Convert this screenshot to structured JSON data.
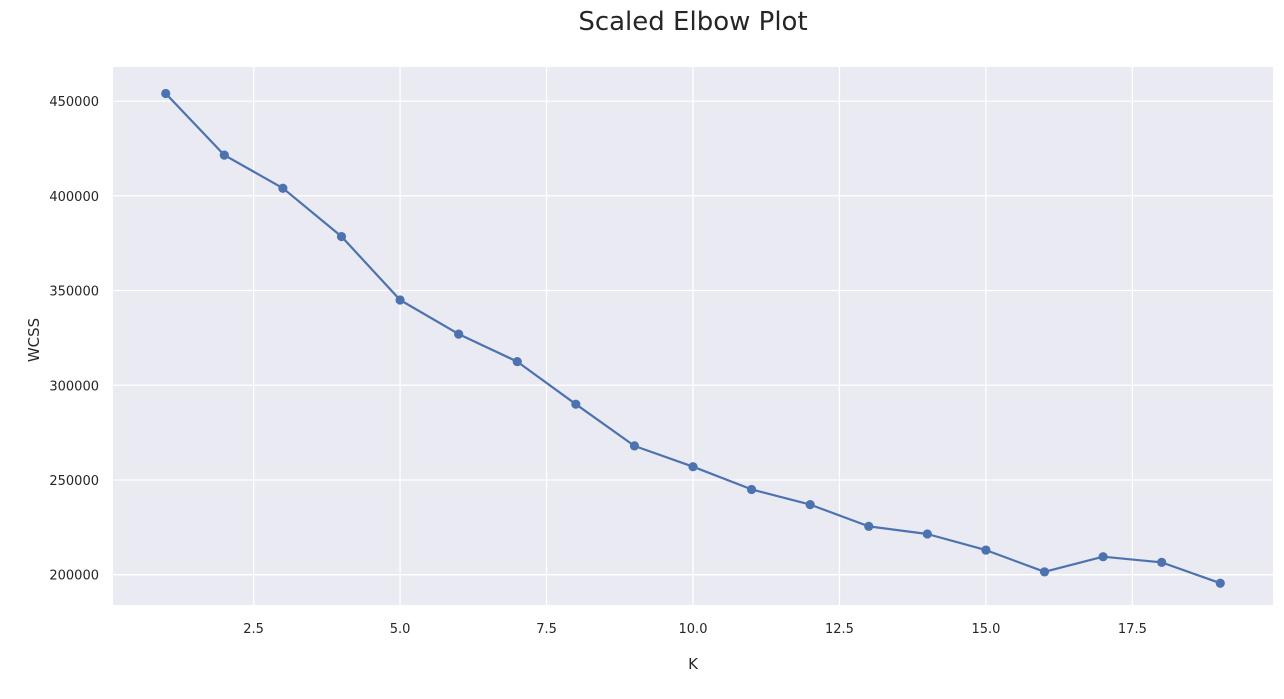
{
  "chart_data": {
    "type": "line",
    "title": "Scaled Elbow Plot",
    "xlabel": "K",
    "ylabel": "WCSS",
    "xlim": [
      0.1,
      19.9
    ],
    "ylim": [
      184000,
      468000
    ],
    "x_ticks": [
      2.5,
      5.0,
      7.5,
      10.0,
      12.5,
      15.0,
      17.5
    ],
    "x_tick_labels": [
      "2.5",
      "5.0",
      "7.5",
      "10.0",
      "12.5",
      "15.0",
      "17.5"
    ],
    "y_ticks": [
      200000,
      250000,
      300000,
      350000,
      400000,
      450000
    ],
    "y_tick_labels": [
      "200000",
      "250000",
      "300000",
      "350000",
      "400000",
      "450000"
    ],
    "grid": true,
    "background_color": "#eaeaf2",
    "line_color": "#4c72b0",
    "marker": "circle",
    "series": [
      {
        "x": [
          1,
          2,
          3,
          4,
          5,
          6,
          7,
          8,
          9,
          10,
          11,
          12,
          13,
          14,
          15,
          16,
          17,
          18,
          19
        ],
        "values": [
          454000,
          421500,
          404000,
          378500,
          345000,
          327000,
          312500,
          290000,
          268000,
          257000,
          245000,
          237000,
          225500,
          221500,
          213000,
          201500,
          209500,
          206500,
          195500
        ]
      }
    ]
  }
}
